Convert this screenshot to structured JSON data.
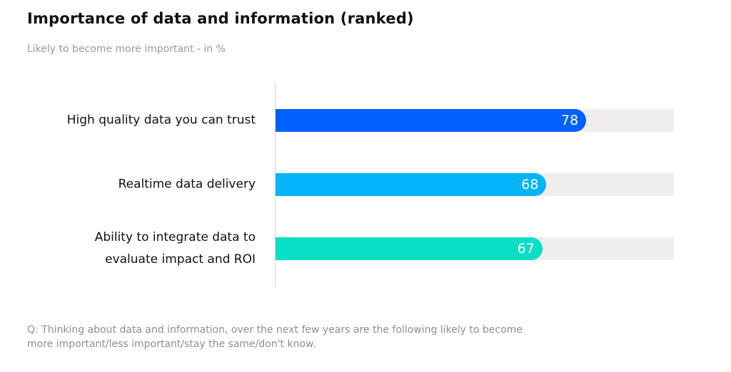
{
  "chart_data": {
    "type": "bar",
    "orientation": "horizontal",
    "title": "Importance of data and information (ranked)",
    "subtitle": "Likely to become more important - in %",
    "categories": [
      "High quality data you can trust",
      "Realtime data delivery",
      "Ability to integrate data to evaluate impact and ROI"
    ],
    "category_lines": [
      [
        "High quality data you can trust"
      ],
      [
        "Realtime data delivery"
      ],
      [
        "Ability to integrate data to",
        "evaluate impact and ROI"
      ]
    ],
    "values": [
      78,
      68,
      67
    ],
    "value_labels": [
      "78",
      "68",
      "67"
    ],
    "colors": [
      "#0061fe",
      "#04b4fb",
      "#08dfc4"
    ],
    "track_color": "#f1efed",
    "xlim": [
      0,
      100
    ],
    "grid": false,
    "data_labels": true
  },
  "footer": {
    "line1": "Q: Thinking about data and information, over the next few years are the following likely to become",
    "line2": "more important/less important/stay the same/don't know."
  }
}
